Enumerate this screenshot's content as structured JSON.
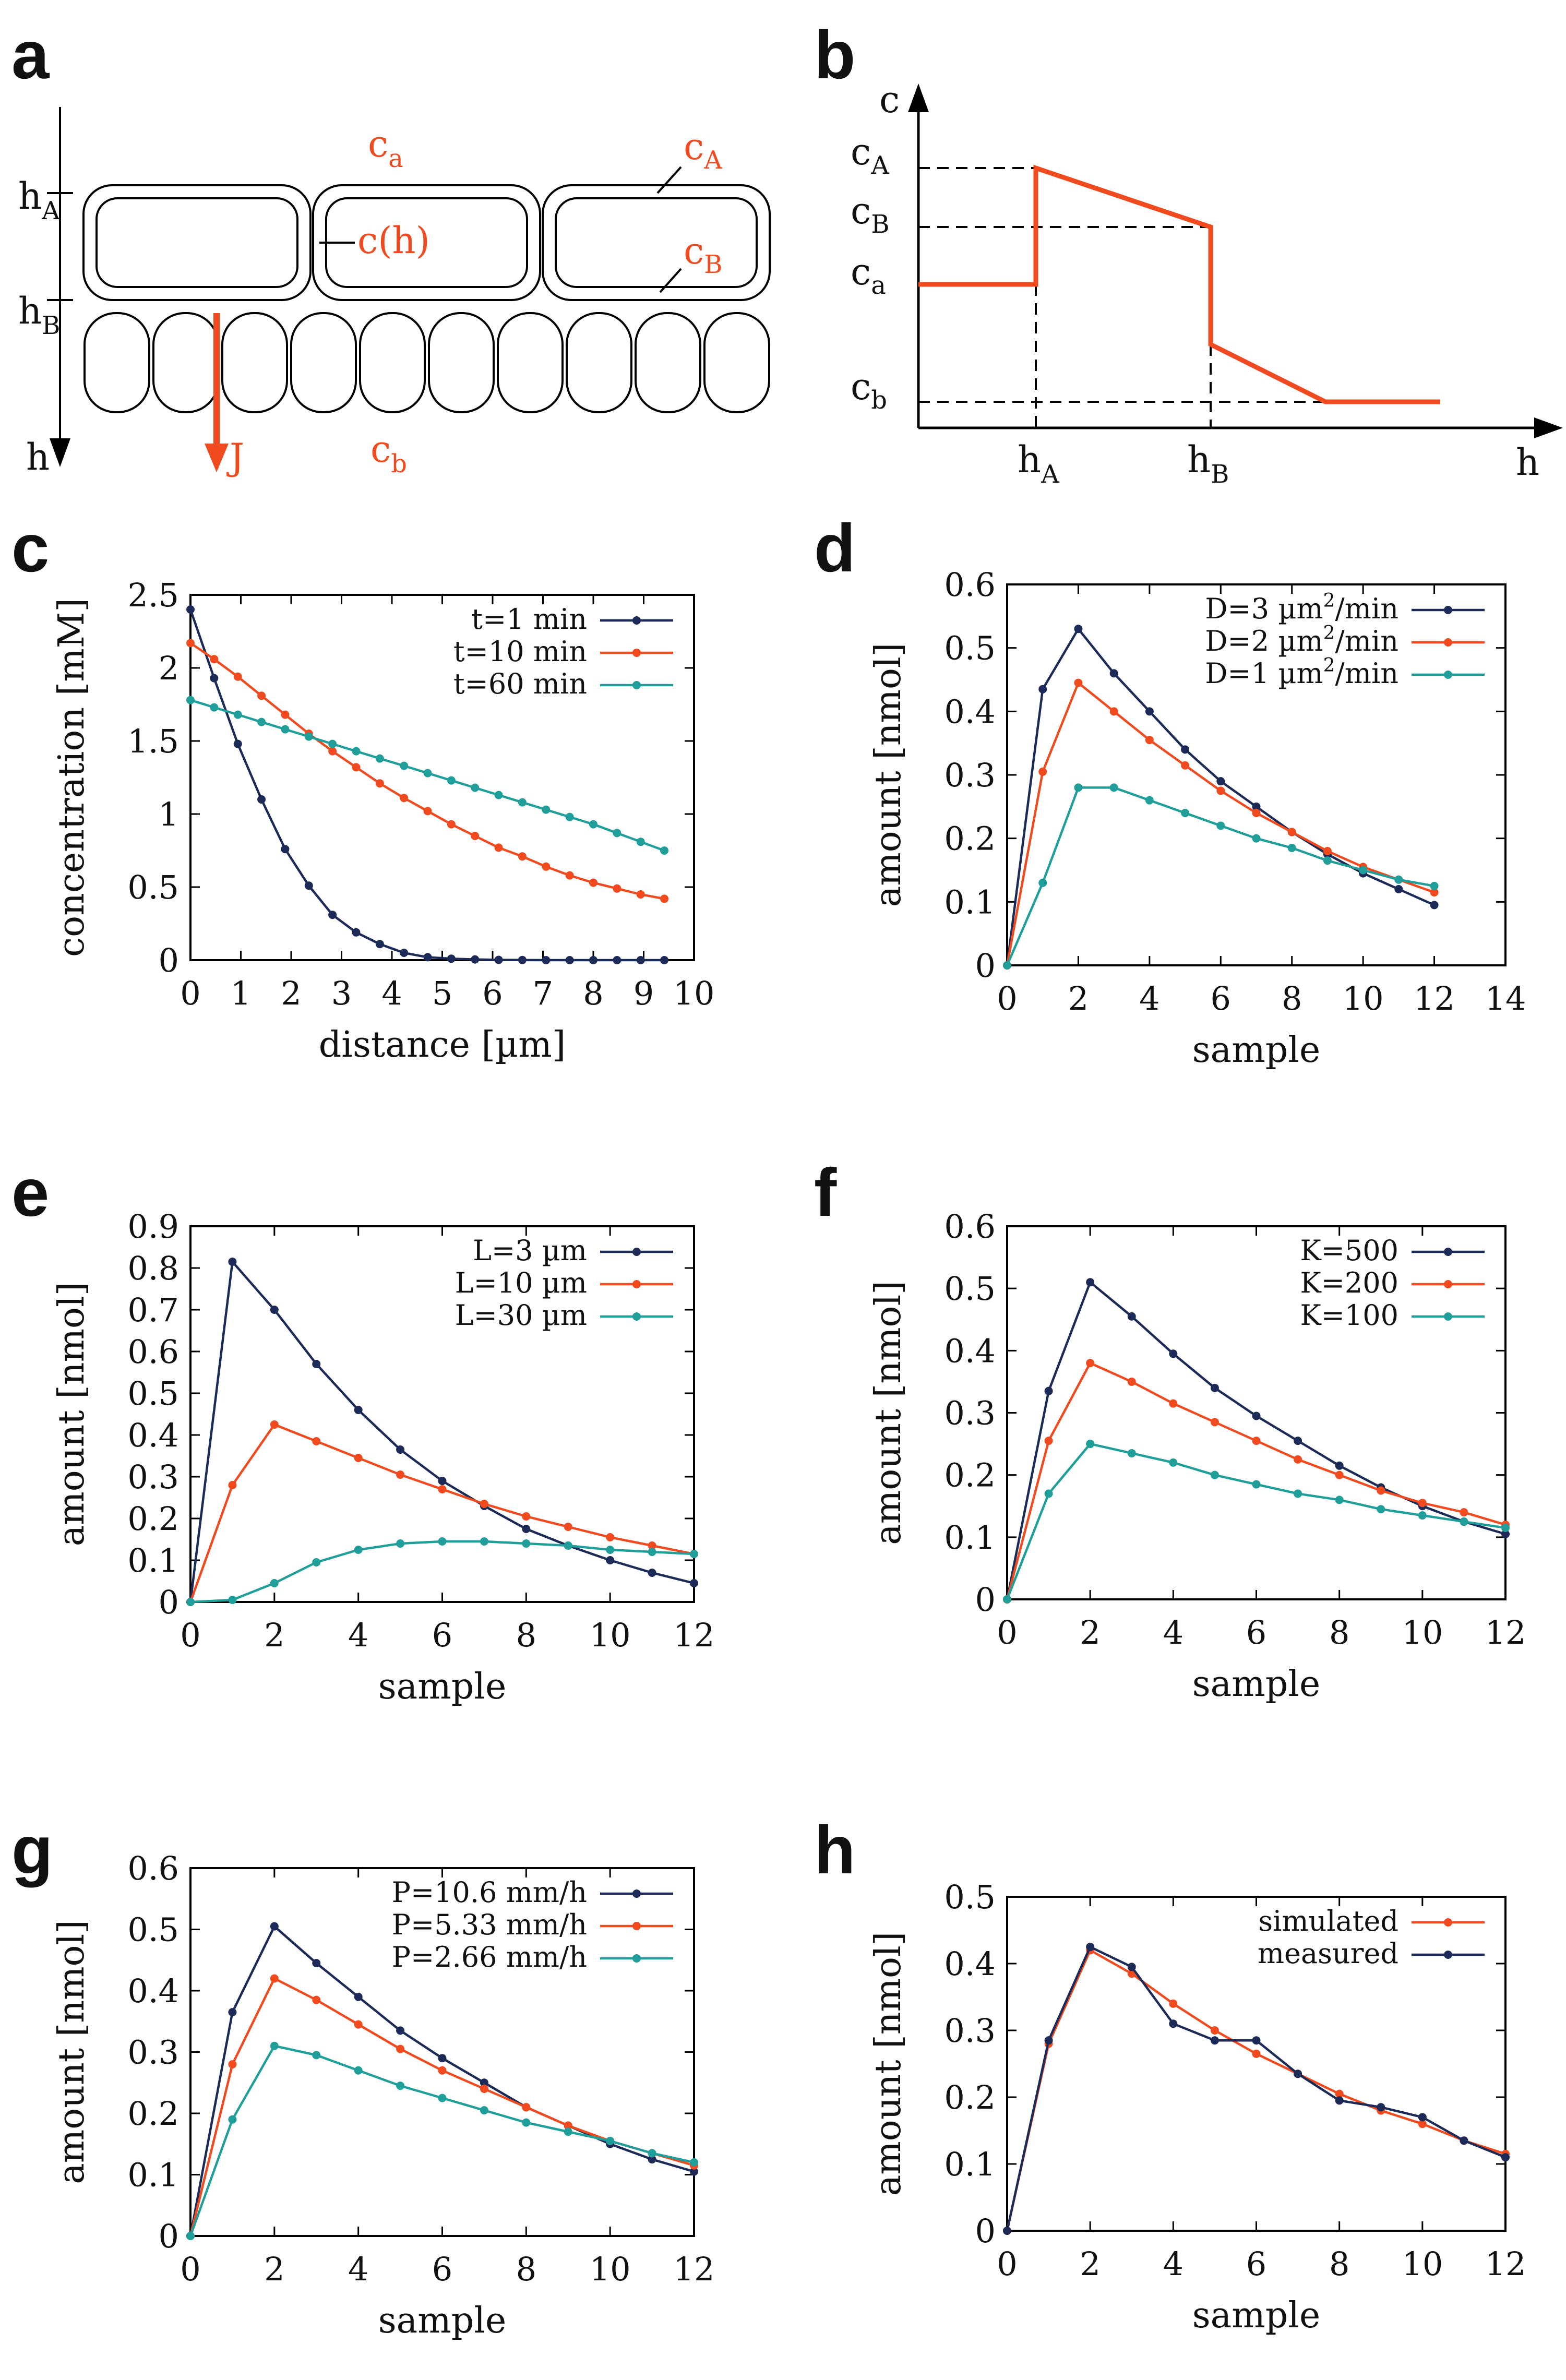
{
  "colors": {
    "navy": "#1b2a57",
    "orange": "#f04a1e",
    "teal": "#1f9e9a",
    "black": "#000000"
  },
  "panel_letters": [
    "a",
    "b",
    "c",
    "d",
    "e",
    "f",
    "g",
    "h"
  ],
  "schematic_a": {
    "labels": {
      "c_main": "c",
      "a_sub": "a",
      "cA_main": "c",
      "cA_sub": "A",
      "cB_main": "c",
      "cB_sub": "B",
      "ch": "c(h)",
      "cb_main": "c",
      "b_sub": "b",
      "hA_main": "h",
      "hA_sub": "A",
      "hB_main": "h",
      "hB_sub": "B",
      "h_axis": "h",
      "J": "J"
    }
  },
  "schematic_b": {
    "labels": {
      "c_axis": "c",
      "h_axis": "h",
      "cA_main": "c",
      "cA_sub": "A",
      "cB_main": "c",
      "cB_sub": "B",
      "ca_main": "c",
      "ca_sub": "a",
      "cb_main": "c",
      "cb_sub": "b",
      "hA_main": "h",
      "hA_sub": "A",
      "hB_main": "h",
      "hB_sub": "B"
    }
  },
  "chart_data": [
    {
      "id": "c",
      "type": "line",
      "xlabel": "distance [µm]",
      "ylabel": "concentration [mM]",
      "xlim": [
        0,
        10
      ],
      "ylim": [
        0,
        2.5
      ],
      "xticks": [
        0,
        1,
        2,
        3,
        4,
        5,
        6,
        7,
        8,
        9,
        10
      ],
      "yticks": [
        0,
        0.5,
        1,
        1.5,
        2,
        2.5
      ],
      "ytick_labels": [
        "0",
        "0.5",
        "1",
        "1.5",
        "2",
        "2.5"
      ],
      "legend": "top-right",
      "series": [
        {
          "name": "t=1 min",
          "color": "navy",
          "x": [
            0,
            0.47,
            0.94,
            1.41,
            1.88,
            2.35,
            2.82,
            3.29,
            3.76,
            4.24,
            4.71,
            5.18,
            5.65,
            6.12,
            6.59,
            7.06,
            7.53,
            8.0,
            8.47,
            8.94,
            9.41
          ],
          "y": [
            2.4,
            1.93,
            1.48,
            1.1,
            0.76,
            0.51,
            0.31,
            0.19,
            0.11,
            0.05,
            0.02,
            0.01,
            0.005,
            0.002,
            0.001,
            0,
            0,
            0,
            0,
            0,
            0
          ]
        },
        {
          "name": "t=10 min",
          "color": "orange",
          "x": [
            0,
            0.47,
            0.94,
            1.41,
            1.88,
            2.35,
            2.82,
            3.29,
            3.76,
            4.24,
            4.71,
            5.18,
            5.65,
            6.12,
            6.59,
            7.06,
            7.53,
            8.0,
            8.47,
            8.94,
            9.41
          ],
          "y": [
            2.17,
            2.06,
            1.94,
            1.81,
            1.68,
            1.55,
            1.43,
            1.32,
            1.21,
            1.11,
            1.02,
            0.93,
            0.85,
            0.77,
            0.71,
            0.64,
            0.58,
            0.53,
            0.49,
            0.45,
            0.42
          ]
        },
        {
          "name": "t=60 min",
          "color": "teal",
          "x": [
            0,
            0.47,
            0.94,
            1.41,
            1.88,
            2.35,
            2.82,
            3.29,
            3.76,
            4.24,
            4.71,
            5.18,
            5.65,
            6.12,
            6.59,
            7.06,
            7.53,
            8.0,
            8.47,
            8.94,
            9.41
          ],
          "y": [
            1.78,
            1.73,
            1.68,
            1.63,
            1.58,
            1.53,
            1.48,
            1.43,
            1.38,
            1.33,
            1.28,
            1.23,
            1.18,
            1.13,
            1.08,
            1.03,
            0.98,
            0.93,
            0.87,
            0.81,
            0.75
          ]
        }
      ]
    },
    {
      "id": "d",
      "type": "line",
      "xlabel": "sample",
      "ylabel": "amount [nmol]",
      "xlim": [
        0,
        14
      ],
      "ylim": [
        0,
        0.6
      ],
      "xticks": [
        0,
        2,
        4,
        6,
        8,
        10,
        12,
        14
      ],
      "yticks": [
        0,
        0.1,
        0.2,
        0.3,
        0.4,
        0.5,
        0.6
      ],
      "ytick_labels": [
        "0",
        "0.1",
        "0.2",
        "0.3",
        "0.4",
        "0.5",
        "0.6"
      ],
      "legend": "top-right",
      "series": [
        {
          "name_main": "D=3 µm",
          "name_sup": "2",
          "name_tail": "/min",
          "color": "navy",
          "x": [
            0,
            1,
            2,
            3,
            4,
            5,
            6,
            7,
            8,
            9,
            10,
            11,
            12
          ],
          "y": [
            0,
            0.435,
            0.53,
            0.46,
            0.4,
            0.34,
            0.29,
            0.25,
            0.21,
            0.175,
            0.145,
            0.12,
            0.095
          ]
        },
        {
          "name_main": "D=2 µm",
          "name_sup": "2",
          "name_tail": "/min",
          "color": "orange",
          "x": [
            0,
            1,
            2,
            3,
            4,
            5,
            6,
            7,
            8,
            9,
            10,
            11,
            12
          ],
          "y": [
            0,
            0.305,
            0.445,
            0.4,
            0.355,
            0.315,
            0.275,
            0.24,
            0.21,
            0.18,
            0.155,
            0.135,
            0.115
          ]
        },
        {
          "name_main": "D=1 µm",
          "name_sup": "2",
          "name_tail": "/min",
          "color": "teal",
          "x": [
            0,
            1,
            2,
            3,
            4,
            5,
            6,
            7,
            8,
            9,
            10,
            11,
            12
          ],
          "y": [
            0,
            0.13,
            0.28,
            0.28,
            0.26,
            0.24,
            0.22,
            0.2,
            0.185,
            0.165,
            0.15,
            0.135,
            0.125
          ]
        }
      ]
    },
    {
      "id": "e",
      "type": "line",
      "xlabel": "sample",
      "ylabel": "amount [nmol]",
      "xlim": [
        0,
        12
      ],
      "ylim": [
        0,
        0.9
      ],
      "xticks": [
        0,
        2,
        4,
        6,
        8,
        10,
        12
      ],
      "yticks": [
        0,
        0.1,
        0.2,
        0.3,
        0.4,
        0.5,
        0.6,
        0.7,
        0.8,
        0.9
      ],
      "ytick_labels": [
        "0",
        "0.1",
        "0.2",
        "0.3",
        "0.4",
        "0.5",
        "0.6",
        "0.7",
        "0.8",
        "0.9"
      ],
      "legend": "top-right",
      "series": [
        {
          "name": "L=3 µm",
          "color": "navy",
          "x": [
            0,
            1,
            2,
            3,
            4,
            5,
            6,
            7,
            8,
            9,
            10,
            11,
            12
          ],
          "y": [
            0,
            0.815,
            0.7,
            0.57,
            0.46,
            0.365,
            0.29,
            0.23,
            0.175,
            0.135,
            0.1,
            0.07,
            0.045
          ]
        },
        {
          "name": "L=10 µm",
          "color": "orange",
          "x": [
            0,
            1,
            2,
            3,
            4,
            5,
            6,
            7,
            8,
            9,
            10,
            11,
            12
          ],
          "y": [
            0,
            0.28,
            0.425,
            0.385,
            0.345,
            0.305,
            0.27,
            0.235,
            0.205,
            0.18,
            0.155,
            0.135,
            0.115
          ]
        },
        {
          "name": "L=30 µm",
          "color": "teal",
          "x": [
            0,
            1,
            2,
            3,
            4,
            5,
            6,
            7,
            8,
            9,
            10,
            11,
            12
          ],
          "y": [
            0,
            0.005,
            0.045,
            0.095,
            0.125,
            0.14,
            0.145,
            0.145,
            0.14,
            0.135,
            0.125,
            0.12,
            0.115
          ]
        }
      ]
    },
    {
      "id": "f",
      "type": "line",
      "xlabel": "sample",
      "ylabel": "amount [nmol]",
      "xlim": [
        0,
        12
      ],
      "ylim": [
        0,
        0.6
      ],
      "xticks": [
        0,
        2,
        4,
        6,
        8,
        10,
        12
      ],
      "yticks": [
        0,
        0.1,
        0.2,
        0.3,
        0.4,
        0.5,
        0.6
      ],
      "ytick_labels": [
        "0",
        "0.1",
        "0.2",
        "0.3",
        "0.4",
        "0.5",
        "0.6"
      ],
      "legend": "top-right",
      "series": [
        {
          "name": "K=500",
          "color": "navy",
          "x": [
            0,
            1,
            2,
            3,
            4,
            5,
            6,
            7,
            8,
            9,
            10,
            11,
            12
          ],
          "y": [
            0,
            0.335,
            0.51,
            0.455,
            0.395,
            0.34,
            0.295,
            0.255,
            0.215,
            0.18,
            0.15,
            0.125,
            0.105
          ]
        },
        {
          "name": "K=200",
          "color": "orange",
          "x": [
            0,
            1,
            2,
            3,
            4,
            5,
            6,
            7,
            8,
            9,
            10,
            11,
            12
          ],
          "y": [
            0,
            0.255,
            0.38,
            0.35,
            0.315,
            0.285,
            0.255,
            0.225,
            0.2,
            0.175,
            0.155,
            0.14,
            0.12
          ]
        },
        {
          "name": "K=100",
          "color": "teal",
          "x": [
            0,
            1,
            2,
            3,
            4,
            5,
            6,
            7,
            8,
            9,
            10,
            11,
            12
          ],
          "y": [
            0,
            0.17,
            0.25,
            0.235,
            0.22,
            0.2,
            0.185,
            0.17,
            0.16,
            0.145,
            0.135,
            0.125,
            0.115
          ]
        }
      ]
    },
    {
      "id": "g",
      "type": "line",
      "xlabel": "sample",
      "ylabel": "amount [nmol]",
      "xlim": [
        0,
        12
      ],
      "ylim": [
        0,
        0.6
      ],
      "xticks": [
        0,
        2,
        4,
        6,
        8,
        10,
        12
      ],
      "yticks": [
        0,
        0.1,
        0.2,
        0.3,
        0.4,
        0.5,
        0.6
      ],
      "ytick_labels": [
        "0",
        "0.1",
        "0.2",
        "0.3",
        "0.4",
        "0.5",
        "0.6"
      ],
      "legend": "top-right",
      "series": [
        {
          "name": "P=10.6 mm/h",
          "color": "navy",
          "x": [
            0,
            1,
            2,
            3,
            4,
            5,
            6,
            7,
            8,
            9,
            10,
            11,
            12
          ],
          "y": [
            0,
            0.365,
            0.505,
            0.445,
            0.39,
            0.335,
            0.29,
            0.25,
            0.21,
            0.18,
            0.15,
            0.125,
            0.105
          ]
        },
        {
          "name": "P=5.33 mm/h",
          "color": "orange",
          "x": [
            0,
            1,
            2,
            3,
            4,
            5,
            6,
            7,
            8,
            9,
            10,
            11,
            12
          ],
          "y": [
            0,
            0.28,
            0.42,
            0.385,
            0.345,
            0.305,
            0.27,
            0.24,
            0.21,
            0.18,
            0.155,
            0.135,
            0.115
          ]
        },
        {
          "name": "P=2.66 mm/h",
          "color": "teal",
          "x": [
            0,
            1,
            2,
            3,
            4,
            5,
            6,
            7,
            8,
            9,
            10,
            11,
            12
          ],
          "y": [
            0,
            0.19,
            0.31,
            0.295,
            0.27,
            0.245,
            0.225,
            0.205,
            0.185,
            0.17,
            0.155,
            0.135,
            0.12
          ]
        }
      ]
    },
    {
      "id": "h",
      "type": "line",
      "xlabel": "sample",
      "ylabel": "amount [nmol]",
      "xlim": [
        0,
        12
      ],
      "ylim": [
        0,
        0.5
      ],
      "xticks": [
        0,
        2,
        4,
        6,
        8,
        10,
        12
      ],
      "yticks": [
        0,
        0.1,
        0.2,
        0.3,
        0.4,
        0.5
      ],
      "ytick_labels": [
        "0",
        "0.1",
        "0.2",
        "0.3",
        "0.4",
        "0.5"
      ],
      "legend": "top-right",
      "series": [
        {
          "name": "simulated",
          "color": "orange",
          "x": [
            0,
            1,
            2,
            3,
            4,
            5,
            6,
            7,
            8,
            9,
            10,
            11,
            12
          ],
          "y": [
            0,
            0.28,
            0.42,
            0.385,
            0.34,
            0.3,
            0.265,
            0.235,
            0.205,
            0.18,
            0.16,
            0.135,
            0.115
          ]
        },
        {
          "name": "measured",
          "color": "navy",
          "x": [
            0,
            1,
            2,
            3,
            4,
            5,
            6,
            7,
            8,
            9,
            10,
            11,
            12
          ],
          "y": [
            0,
            0.285,
            0.425,
            0.395,
            0.31,
            0.285,
            0.285,
            0.235,
            0.195,
            0.185,
            0.17,
            0.135,
            0.11
          ]
        }
      ]
    }
  ]
}
